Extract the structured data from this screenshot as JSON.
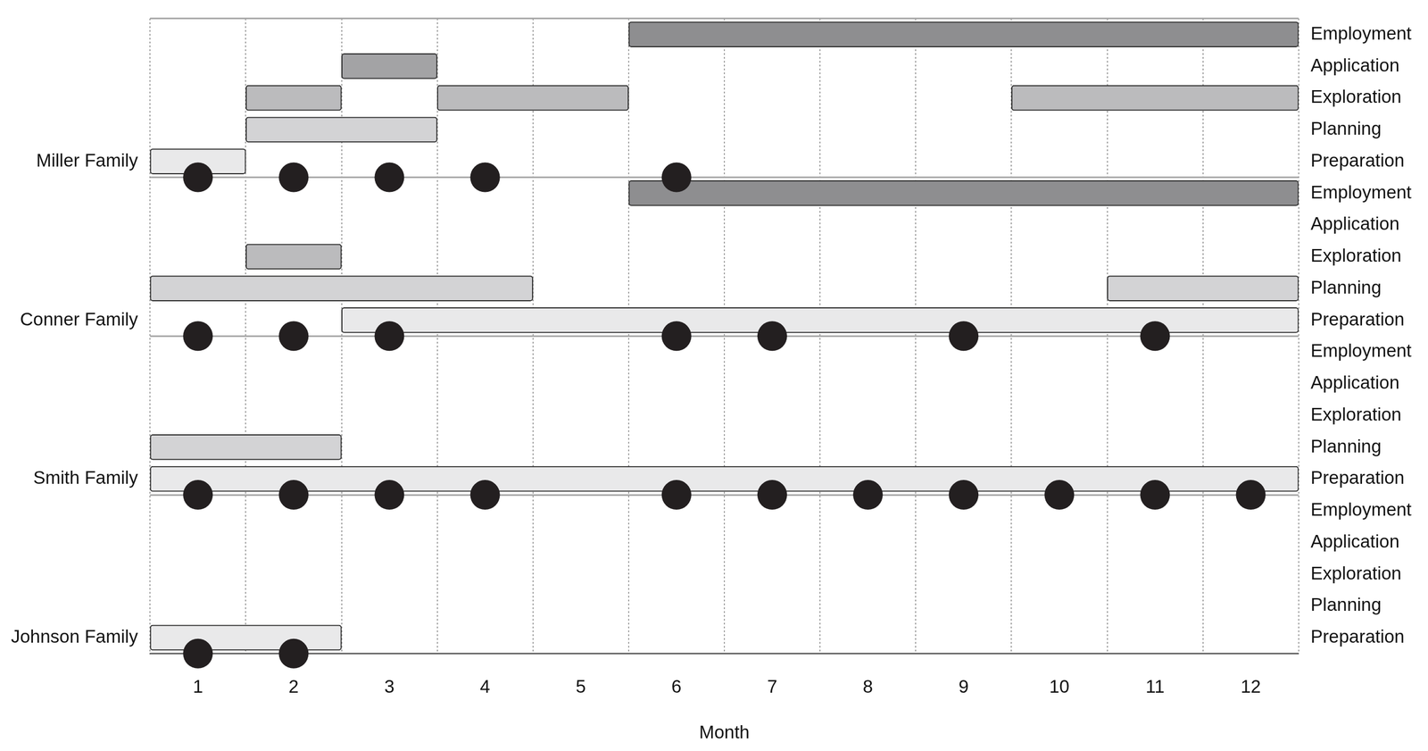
{
  "chart_data": {
    "type": "bar",
    "orientation": "horizontal",
    "xlabel": "Month",
    "xlim": [
      0.5,
      12.5
    ],
    "xticks": [
      1,
      2,
      3,
      4,
      5,
      6,
      7,
      8,
      9,
      10,
      11,
      12
    ],
    "grid": true,
    "marker": "circle",
    "phases": [
      {
        "name": "Preparation",
        "color": "#e9e9ea"
      },
      {
        "name": "Planning",
        "color": "#d3d3d5"
      },
      {
        "name": "Exploration",
        "color": "#bbbbbd"
      },
      {
        "name": "Application",
        "color": "#a3a3a5"
      },
      {
        "name": "Employment",
        "color": "#8e8e90"
      }
    ],
    "families": [
      {
        "name": "Miller Family",
        "bars": [
          {
            "phase": "Preparation",
            "start": 0.5,
            "end": 1.5
          },
          {
            "phase": "Planning",
            "start": 1.5,
            "end": 3.5
          },
          {
            "phase": "Exploration",
            "start": 1.5,
            "end": 2.5
          },
          {
            "phase": "Exploration",
            "start": 3.5,
            "end": 5.5
          },
          {
            "phase": "Exploration",
            "start": 9.5,
            "end": 12.5
          },
          {
            "phase": "Application",
            "start": 2.5,
            "end": 3.5
          },
          {
            "phase": "Employment",
            "start": 5.5,
            "end": 12.5
          }
        ],
        "markers": [
          1,
          2,
          3,
          4,
          6
        ]
      },
      {
        "name": "Conner Family",
        "bars": [
          {
            "phase": "Preparation",
            "start": 2.5,
            "end": 12.5
          },
          {
            "phase": "Planning",
            "start": 0.5,
            "end": 4.5
          },
          {
            "phase": "Planning",
            "start": 10.5,
            "end": 12.5
          },
          {
            "phase": "Exploration",
            "start": 1.5,
            "end": 2.5
          },
          {
            "phase": "Employment",
            "start": 5.5,
            "end": 12.5
          }
        ],
        "markers": [
          1,
          2,
          3,
          6,
          7,
          9,
          11
        ]
      },
      {
        "name": "Smith Family",
        "bars": [
          {
            "phase": "Preparation",
            "start": 0.5,
            "end": 12.5
          },
          {
            "phase": "Planning",
            "start": 0.5,
            "end": 2.5
          }
        ],
        "markers": [
          1,
          2,
          3,
          4,
          6,
          7,
          8,
          9,
          10,
          11,
          12
        ]
      },
      {
        "name": "Johnson Family",
        "bars": [
          {
            "phase": "Preparation",
            "start": 0.5,
            "end": 2.5
          }
        ],
        "markers": [
          1,
          2
        ]
      }
    ]
  }
}
